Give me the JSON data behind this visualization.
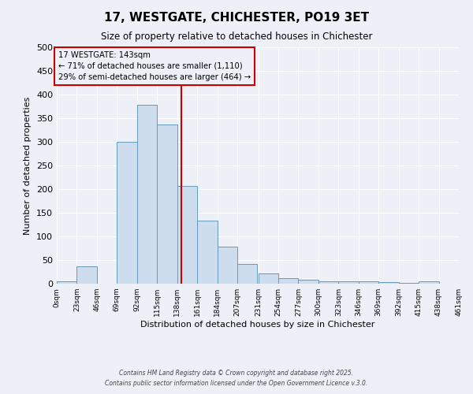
{
  "title": "17, WESTGATE, CHICHESTER, PO19 3ET",
  "subtitle": "Size of property relative to detached houses in Chichester",
  "xlabel": "Distribution of detached houses by size in Chichester",
  "ylabel": "Number of detached properties",
  "bin_labels": [
    "0sqm",
    "23sqm",
    "46sqm",
    "69sqm",
    "92sqm",
    "115sqm",
    "138sqm",
    "161sqm",
    "184sqm",
    "207sqm",
    "231sqm",
    "254sqm",
    "277sqm",
    "300sqm",
    "323sqm",
    "346sqm",
    "369sqm",
    "392sqm",
    "415sqm",
    "438sqm",
    "461sqm"
  ],
  "bin_edges": [
    0,
    23,
    46,
    69,
    92,
    115,
    138,
    161,
    184,
    207,
    231,
    254,
    277,
    300,
    323,
    346,
    369,
    392,
    415,
    438,
    461
  ],
  "bar_heights": [
    5,
    37,
    0,
    300,
    378,
    336,
    207,
    133,
    78,
    41,
    22,
    12,
    9,
    5,
    5,
    5,
    3,
    1,
    5,
    0
  ],
  "bar_color": "#cddded",
  "bar_edge_color": "#6699bb",
  "vline_x": 143,
  "vline_color": "#cc0000",
  "ylim": [
    0,
    500
  ],
  "yticks": [
    0,
    50,
    100,
    150,
    200,
    250,
    300,
    350,
    400,
    450,
    500
  ],
  "annotation_title": "17 WESTGATE: 143sqm",
  "annotation_line1": "← 71% of detached houses are smaller (1,110)",
  "annotation_line2": "29% of semi-detached houses are larger (464) →",
  "annotation_box_edgecolor": "#cc0000",
  "background_color": "#edf1f7",
  "grid_color": "#ffffff",
  "footer1": "Contains HM Land Registry data © Crown copyright and database right 2025.",
  "footer2": "Contains public sector information licensed under the Open Government Licence v.3.0."
}
